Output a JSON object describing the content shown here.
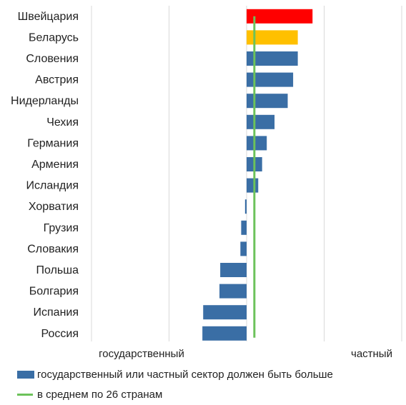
{
  "chart_data": {
    "type": "bar",
    "orientation": "horizontal",
    "categories": [
      "Швейцария",
      "Беларусь",
      "Словения",
      "Австрия",
      "Нидерланды",
      "Чехия",
      "Германия",
      "Армения",
      "Исландия",
      "Хорватия",
      "Грузия",
      "Словакия",
      "Польша",
      "Болгария",
      "Испания",
      "Россия"
    ],
    "values": [
      0.85,
      0.66,
      0.66,
      0.6,
      0.53,
      0.36,
      0.26,
      0.2,
      0.15,
      -0.02,
      -0.07,
      -0.08,
      -0.34,
      -0.35,
      -0.56,
      -0.57
    ],
    "bar_colors": [
      "#ff0000",
      "#ffc000",
      "#3a6ea5",
      "#3a6ea5",
      "#3a6ea5",
      "#3a6ea5",
      "#3a6ea5",
      "#3a6ea5",
      "#3a6ea5",
      "#3a6ea5",
      "#3a6ea5",
      "#3a6ea5",
      "#3a6ea5",
      "#3a6ea5",
      "#3a6ea5",
      "#3a6ea5"
    ],
    "average": 0.1,
    "xlim": [
      -2,
      2
    ],
    "x_end_labels": {
      "left": "государственный",
      "right": "частный"
    },
    "grid": true,
    "legend_position": "bottom",
    "series": [
      {
        "name": "государственный или частный сектор должен быть больше",
        "color": "#3a6ea5"
      },
      {
        "name": "в среднем по 26 странам",
        "color": "#6cc25a"
      }
    ]
  },
  "colors": {
    "grid": "#d9d9d9",
    "text": "#222222"
  }
}
